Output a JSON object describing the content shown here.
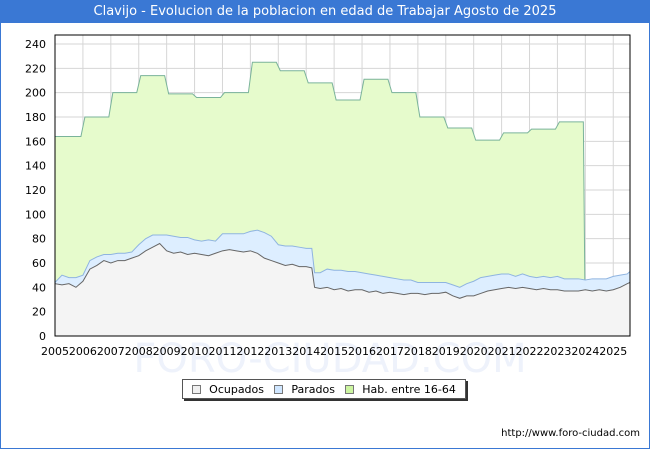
{
  "header": {
    "title": "Clavijo - Evolucion de la poblacion en edad de Trabajar Agosto de 2025"
  },
  "footer": {
    "url": "http://www.foro-ciudad.com"
  },
  "watermark": "FORO-CIUDAD.COM",
  "colors": {
    "title_bg": "#3a78d4",
    "hab_fill": "#e6fbcc",
    "hab_line": "#7ab39a",
    "parados_fill": "#ddeeff",
    "parados_line": "#8fb4e0",
    "ocupados_fill": "#f4f4f4",
    "ocupados_line": "#666666",
    "grid": "#d6d6d6"
  },
  "legend": [
    {
      "label": "Ocupados",
      "color": "#f0f0f0"
    },
    {
      "label": "Parados",
      "color": "#cfe6ff"
    },
    {
      "label": "Hab. entre 16-64",
      "color": "#ccf5a0"
    }
  ],
  "chart_data": {
    "type": "area",
    "title": "Clavijo - Evolucion de la poblacion en edad de Trabajar Agosto de 2025",
    "xlabel": "",
    "ylabel": "",
    "ylim": [
      0,
      240
    ],
    "xlim": [
      2005,
      2025.6
    ],
    "grid": true,
    "legend_position": "bottom",
    "y_ticks": [
      0,
      20,
      40,
      60,
      80,
      100,
      120,
      140,
      160,
      180,
      200,
      220,
      240
    ],
    "x_ticks": [
      "2005",
      "2006",
      "2007",
      "2008",
      "2009",
      "2010",
      "2011",
      "2012",
      "2013",
      "2014",
      "2015",
      "2016",
      "2017",
      "2018",
      "2019",
      "2020",
      "2021",
      "2022",
      "2023",
      "2024",
      "2025"
    ],
    "series": [
      {
        "name": "Hab. entre 16-64",
        "note": "annual step values (January population)",
        "x": [
          2005,
          2006,
          2007,
          2008,
          2009,
          2010,
          2011,
          2012,
          2013,
          2014,
          2015,
          2016,
          2017,
          2018,
          2019,
          2020,
          2021,
          2022,
          2023
        ],
        "values": [
          164,
          180,
          200,
          214,
          199,
          196,
          200,
          225,
          218,
          208,
          194,
          211,
          200,
          180,
          171,
          161,
          167,
          170,
          176
        ],
        "end_x": 2024.0
      },
      {
        "name": "Ocupados",
        "x": [
          2005,
          2005.25,
          2005.5,
          2005.75,
          2006,
          2006.25,
          2006.5,
          2006.75,
          2007,
          2007.25,
          2007.5,
          2007.75,
          2008,
          2008.25,
          2008.5,
          2008.75,
          2009,
          2009.25,
          2009.5,
          2009.75,
          2010,
          2010.25,
          2010.5,
          2010.75,
          2011,
          2011.25,
          2011.5,
          2011.75,
          2012,
          2012.25,
          2012.5,
          2012.75,
          2013,
          2013.25,
          2013.5,
          2013.75,
          2014,
          2014.2,
          2014.3,
          2014.5,
          2014.75,
          2015,
          2015.25,
          2015.5,
          2015.75,
          2016,
          2016.25,
          2016.5,
          2016.75,
          2017,
          2017.25,
          2017.5,
          2017.75,
          2018,
          2018.25,
          2018.5,
          2018.75,
          2019,
          2019.25,
          2019.5,
          2019.75,
          2020,
          2020.25,
          2020.5,
          2020.75,
          2021,
          2021.25,
          2021.5,
          2021.75,
          2022,
          2022.25,
          2022.5,
          2022.75,
          2023,
          2023.25,
          2023.5,
          2023.75,
          2024,
          2024.25,
          2024.5,
          2024.75,
          2025,
          2025.25,
          2025.5,
          2025.6
        ],
        "values": [
          43,
          42,
          43,
          40,
          45,
          55,
          58,
          62,
          60,
          62,
          62,
          64,
          66,
          70,
          73,
          76,
          70,
          68,
          69,
          67,
          68,
          67,
          66,
          68,
          70,
          71,
          70,
          69,
          70,
          68,
          64,
          62,
          60,
          58,
          59,
          57,
          57,
          56,
          40,
          39,
          40,
          38,
          39,
          37,
          38,
          38,
          36,
          37,
          35,
          36,
          35,
          34,
          35,
          35,
          34,
          35,
          35,
          36,
          33,
          31,
          33,
          33,
          35,
          37,
          38,
          39,
          40,
          39,
          40,
          39,
          38,
          39,
          38,
          38,
          37,
          37,
          37,
          38,
          37,
          38,
          37,
          38,
          40,
          43,
          44
        ]
      },
      {
        "name": "Parados",
        "note": "stacked on Ocupados; values = Parados count",
        "x": [
          2005,
          2005.25,
          2005.5,
          2005.75,
          2006,
          2006.25,
          2006.5,
          2006.75,
          2007,
          2007.25,
          2007.5,
          2007.75,
          2008,
          2008.25,
          2008.5,
          2008.75,
          2009,
          2009.25,
          2009.5,
          2009.75,
          2010,
          2010.25,
          2010.5,
          2010.75,
          2011,
          2011.25,
          2011.5,
          2011.75,
          2012,
          2012.25,
          2012.5,
          2012.75,
          2013,
          2013.25,
          2013.5,
          2013.75,
          2014,
          2014.2,
          2014.3,
          2014.5,
          2014.75,
          2015,
          2015.25,
          2015.5,
          2015.75,
          2016,
          2016.25,
          2016.5,
          2016.75,
          2017,
          2017.25,
          2017.5,
          2017.75,
          2018,
          2018.25,
          2018.5,
          2018.75,
          2019,
          2019.25,
          2019.5,
          2019.75,
          2020,
          2020.25,
          2020.5,
          2020.75,
          2021,
          2021.25,
          2021.5,
          2021.75,
          2022,
          2022.25,
          2022.5,
          2022.75,
          2023,
          2023.25,
          2023.5,
          2023.75,
          2024,
          2024.25,
          2024.5,
          2024.75,
          2025,
          2025.25,
          2025.5,
          2025.6
        ],
        "values": [
          1,
          8,
          5,
          8,
          5,
          7,
          7,
          5,
          7,
          6,
          6,
          5,
          9,
          10,
          10,
          7,
          13,
          14,
          12,
          14,
          11,
          11,
          13,
          10,
          14,
          13,
          14,
          15,
          16,
          19,
          21,
          20,
          15,
          16,
          15,
          16,
          15,
          16,
          12,
          13,
          15,
          16,
          15,
          16,
          15,
          14,
          15,
          13,
          14,
          12,
          12,
          12,
          11,
          9,
          10,
          9,
          9,
          8,
          9,
          9,
          10,
          12,
          13,
          12,
          12,
          12,
          11,
          10,
          11,
          10,
          10,
          10,
          10,
          11,
          10,
          10,
          10,
          8,
          10,
          9,
          10,
          11,
          10,
          8,
          9
        ]
      }
    ]
  }
}
